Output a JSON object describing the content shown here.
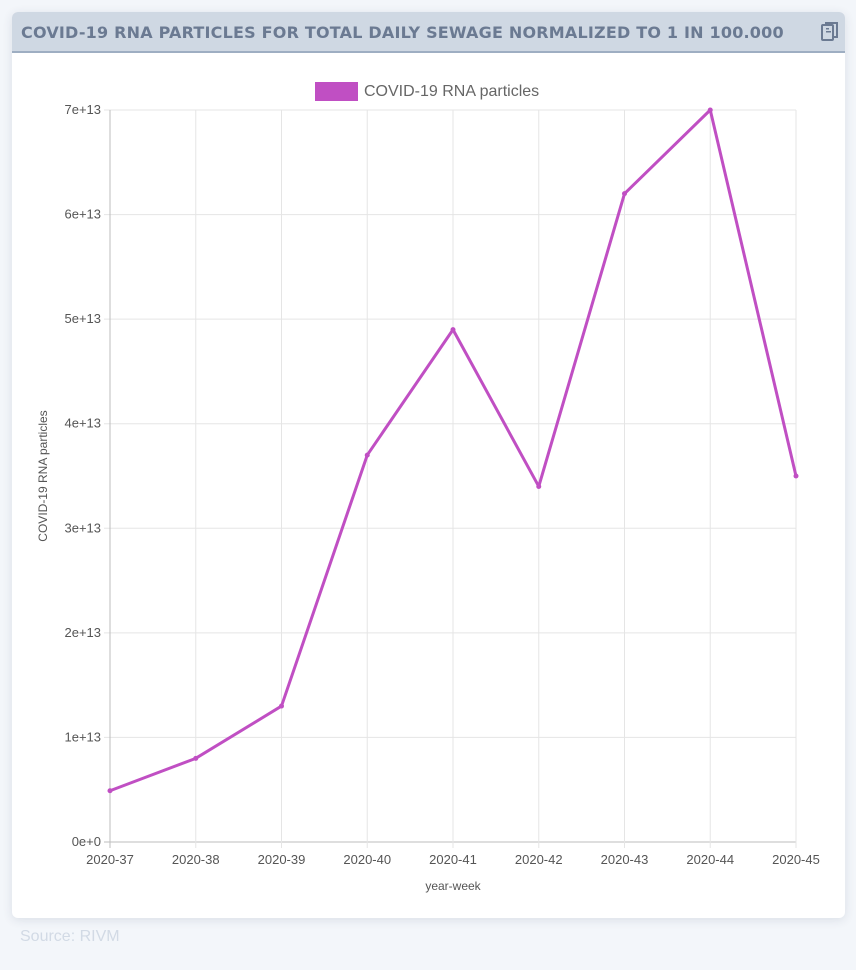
{
  "header": {
    "title": "COVID-19 RNA PARTICLES FOR TOTAL DAILY SEWAGE NORMALIZED TO 1 IN 100.000",
    "copy_icon": "copy-icon"
  },
  "footer": {
    "source": "Source: RIVM"
  },
  "chart_data": {
    "type": "line",
    "categories": [
      "2020-37",
      "2020-38",
      "2020-39",
      "2020-40",
      "2020-41",
      "2020-42",
      "2020-43",
      "2020-44",
      "2020-45"
    ],
    "series": [
      {
        "name": "COVID-19 RNA particles",
        "color": "#c04fc3",
        "values": [
          4900000000000.0,
          8000000000000.0,
          13000000000000.0,
          37000000000000.0,
          49000000000000.0,
          34000000000000.0,
          62000000000000.0,
          70000000000000.0,
          35000000000000.0
        ]
      }
    ],
    "xlabel": "year-week",
    "ylabel": "COVID-19 RNA particles",
    "ylim": [
      0,
      70000000000000.0
    ],
    "yticks": [
      "0e+0",
      "1e+13",
      "2e+13",
      "3e+13",
      "4e+13",
      "5e+13",
      "6e+13",
      "7e+13"
    ],
    "legend": "top-center",
    "grid": true
  }
}
